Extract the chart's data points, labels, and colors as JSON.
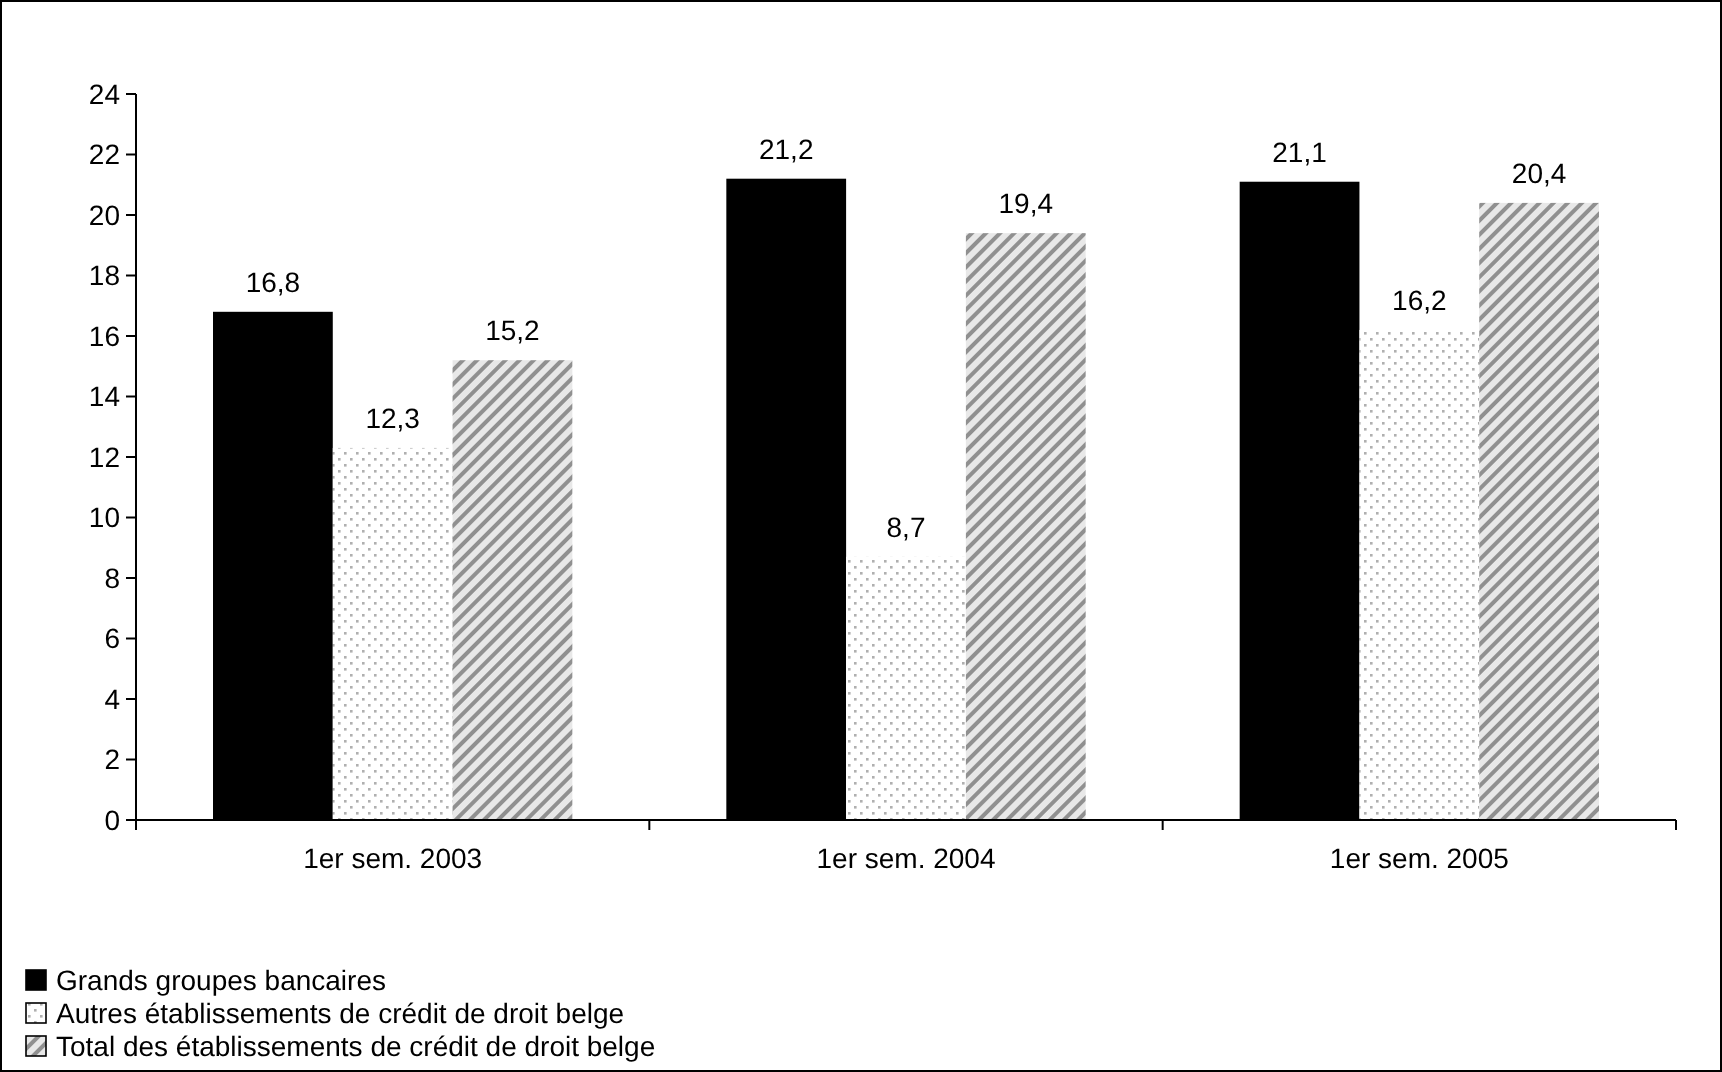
{
  "chart_data": {
    "type": "bar",
    "categories": [
      "1er sem. 2003",
      "1er sem. 2004",
      "1er sem. 2005"
    ],
    "series": [
      {
        "name": "Grands groupes bancaires",
        "color": "#000000",
        "values": [
          16.8,
          21.2,
          21.1
        ],
        "value_labels": [
          "16,8",
          "21,2",
          "21,1"
        ]
      },
      {
        "name": "Autres établissements de crédit de droit belge",
        "color": "#b0b0b0",
        "values": [
          12.3,
          8.7,
          16.2
        ],
        "value_labels": [
          "12,3",
          "8,7",
          "16,2"
        ]
      },
      {
        "name": "Total des établissements de crédit de droit belge",
        "color": "#909090",
        "values": [
          15.2,
          19.4,
          20.4
        ],
        "value_labels": [
          "15,2",
          "19,4",
          "20,4"
        ]
      }
    ],
    "ylim": [
      0,
      24
    ],
    "yticks": [
      0,
      2,
      4,
      6,
      8,
      10,
      12,
      14,
      16,
      18,
      20,
      22,
      24
    ],
    "grid": false,
    "legend": "bottom left"
  }
}
